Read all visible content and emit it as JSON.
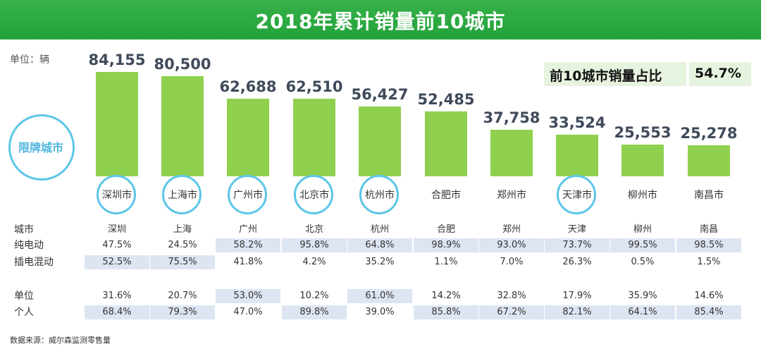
{
  "title": "2018年累计销量前10城市",
  "unit_label": "单位：辆",
  "restricted_label": "限牌城市",
  "share": {
    "label": "前10城市销量占比",
    "value": "54.7%"
  },
  "row_labels": {
    "header": "城市",
    "ev": "纯电动",
    "phev": "插电混动",
    "org": "单位",
    "personal": "个人"
  },
  "source": "数据来源：威尔森监测零售量",
  "colors": {
    "title_bar": "#2aa63f",
    "bar": "#8fd14f",
    "ring": "#5cc6e8",
    "highlight": "#dde5f3"
  },
  "chart_data": {
    "type": "bar",
    "title": "2018年累计销量前10城市",
    "ylabel": "",
    "unit": "单位：辆",
    "ylim": [
      0,
      90000
    ],
    "grid": false,
    "categories": [
      "深圳市",
      "上海市",
      "广州市",
      "北京市",
      "杭州市",
      "合肥市",
      "郑州市",
      "天津市",
      "柳州市",
      "南昌市"
    ],
    "values": [
      84155,
      80500,
      62688,
      62510,
      56427,
      52485,
      37758,
      33524,
      25553,
      25278
    ],
    "value_labels": [
      "84,155",
      "80,500",
      "62,688",
      "62,510",
      "56,427",
      "52,485",
      "37,758",
      "33,524",
      "25,553",
      "25,278"
    ],
    "restricted": [
      true,
      true,
      true,
      true,
      true,
      false,
      false,
      true,
      false,
      false
    ]
  },
  "table": {
    "cities": [
      "深圳",
      "上海",
      "广州",
      "北京",
      "杭州",
      "合肥",
      "郑州",
      "天津",
      "柳州",
      "南昌"
    ],
    "ev": [
      "47.5%",
      "24.5%",
      "58.2%",
      "95.8%",
      "64.8%",
      "98.9%",
      "93.0%",
      "73.7%",
      "99.5%",
      "98.5%"
    ],
    "phev": [
      "52.5%",
      "75.5%",
      "41.8%",
      "4.2%",
      "35.2%",
      "1.1%",
      "7.0%",
      "26.3%",
      "0.5%",
      "1.5%"
    ],
    "org": [
      "31.6%",
      "20.7%",
      "53.0%",
      "10.2%",
      "61.0%",
      "14.2%",
      "32.8%",
      "17.9%",
      "35.9%",
      "14.6%"
    ],
    "personal": [
      "68.4%",
      "79.3%",
      "47.0%",
      "89.8%",
      "39.0%",
      "85.8%",
      "67.2%",
      "82.1%",
      "64.1%",
      "85.4%"
    ]
  }
}
